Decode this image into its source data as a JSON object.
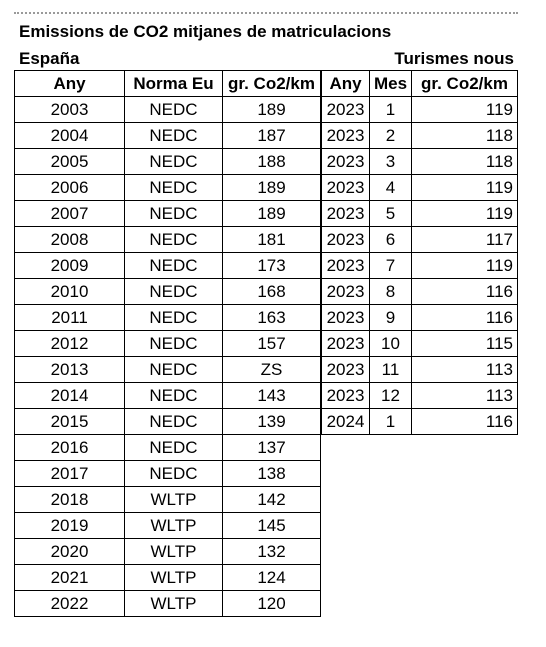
{
  "title": "Emissions de CO2 mitjanes de matriculacions",
  "region": "España",
  "subtitle_right": "Turismes nous",
  "annual": {
    "headers": [
      "Any",
      "Norma Eu",
      "gr. Co2/km"
    ],
    "rows": [
      [
        "2003",
        "NEDC",
        "189"
      ],
      [
        "2004",
        "NEDC",
        "187"
      ],
      [
        "2005",
        "NEDC",
        "188"
      ],
      [
        "2006",
        "NEDC",
        "189"
      ],
      [
        "2007",
        "NEDC",
        "189"
      ],
      [
        "2008",
        "NEDC",
        "181"
      ],
      [
        "2009",
        "NEDC",
        "173"
      ],
      [
        "2010",
        "NEDC",
        "168"
      ],
      [
        "2011",
        "NEDC",
        "163"
      ],
      [
        "2012",
        "NEDC",
        "157"
      ],
      [
        "2013",
        "NEDC",
        "ZS"
      ],
      [
        "2014",
        "NEDC",
        "143"
      ],
      [
        "2015",
        "NEDC",
        "139"
      ],
      [
        "2016",
        "NEDC",
        "137"
      ],
      [
        "2017",
        "NEDC",
        "138"
      ],
      [
        "2018",
        "WLTP",
        "142"
      ],
      [
        "2019",
        "WLTP",
        "145"
      ],
      [
        "2020",
        "WLTP",
        "132"
      ],
      [
        "2021",
        "WLTP",
        "124"
      ],
      [
        "2022",
        "WLTP",
        "120"
      ]
    ]
  },
  "monthly": {
    "headers": [
      "Any",
      "Mes",
      "gr. Co2/km"
    ],
    "rows": [
      [
        "2023",
        "1",
        "119"
      ],
      [
        "2023",
        "2",
        "118"
      ],
      [
        "2023",
        "3",
        "118"
      ],
      [
        "2023",
        "4",
        "119"
      ],
      [
        "2023",
        "5",
        "119"
      ],
      [
        "2023",
        "6",
        "117"
      ],
      [
        "2023",
        "7",
        "119"
      ],
      [
        "2023",
        "8",
        "116"
      ],
      [
        "2023",
        "9",
        "116"
      ],
      [
        "2023",
        "10",
        "115"
      ],
      [
        "2023",
        "11",
        "113"
      ],
      [
        "2023",
        "12",
        "113"
      ],
      [
        "2024",
        "1",
        "116"
      ]
    ]
  }
}
